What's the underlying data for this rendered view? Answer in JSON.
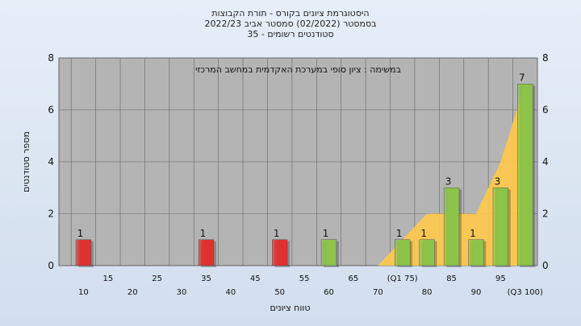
{
  "titles": {
    "line1": "היסטוגרמת ציונים בקורס - תורת הקבוצות",
    "line2": "בסמסטר  (02/2022)  סמסטר אביב 2022/23",
    "line3": "סטודנטים רשומים - 35"
  },
  "chart_data": {
    "type": "bar",
    "annotation": "במשימה : ציון סופי במערכת האקדמית במחשב המרכזי",
    "xlabel": "טווח ציונים",
    "ylabel": "מספר סטודנטים",
    "ylim": [
      0,
      8
    ],
    "yticks": [
      0,
      2,
      4,
      6,
      8
    ],
    "grid": true,
    "x": [
      10,
      15,
      20,
      25,
      30,
      35,
      40,
      45,
      50,
      55,
      60,
      65,
      70,
      75,
      80,
      85,
      90,
      95,
      100
    ],
    "xtick_labels": [
      "10",
      "15",
      "20",
      "25",
      "30",
      "35",
      "40",
      "45",
      "50",
      "55",
      "60",
      "65",
      "70",
      "(Q1 75)",
      "80",
      "85",
      "90",
      "95",
      "(Q3 100)"
    ],
    "values": [
      1,
      0,
      0,
      0,
      0,
      1,
      0,
      0,
      1,
      0,
      1,
      0,
      0,
      1,
      1,
      3,
      1,
      3,
      7
    ],
    "bar_colors": [
      "#e03030",
      null,
      null,
      null,
      null,
      "#e03030",
      null,
      null,
      "#e03030",
      null,
      "#8cc44a",
      null,
      null,
      "#8cc44a",
      "#8cc44a",
      "#8cc44a",
      "#8cc44a",
      "#8cc44a",
      "#8cc44a"
    ],
    "area": [
      0,
      0,
      0,
      0,
      0,
      0,
      0,
      0,
      0,
      0,
      0,
      0,
      0,
      1,
      2,
      2,
      2,
      4,
      7
    ],
    "area_color": "#ffc94a",
    "plot_bg": "#b4b4b4"
  }
}
